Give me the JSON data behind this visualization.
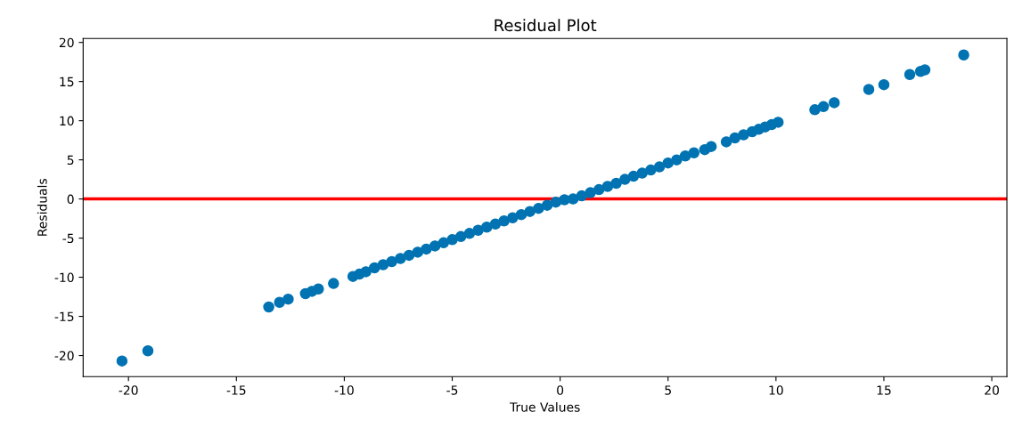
{
  "chart_data": {
    "type": "scatter",
    "title": "Residual Plot",
    "xlabel": "True Values",
    "ylabel": "Residuals",
    "x": [
      -20.3,
      -19.1,
      -13.5,
      -13.0,
      -12.6,
      -11.8,
      -11.5,
      -11.2,
      -10.5,
      -9.6,
      -9.3,
      -9.0,
      -8.6,
      -8.2,
      -7.8,
      -7.4,
      -7.0,
      -6.6,
      -6.2,
      -5.8,
      -5.4,
      -5.0,
      -4.6,
      -4.2,
      -3.8,
      -3.4,
      -3.0,
      -2.6,
      -2.2,
      -1.8,
      -1.4,
      -1.0,
      -0.6,
      -0.2,
      0.2,
      0.6,
      1.0,
      1.4,
      1.8,
      2.2,
      2.6,
      3.0,
      3.4,
      3.8,
      4.2,
      4.6,
      5.0,
      5.4,
      5.8,
      6.2,
      6.7,
      7.0,
      7.7,
      8.1,
      8.5,
      8.9,
      9.2,
      9.5,
      9.8,
      10.1,
      11.8,
      12.2,
      12.7,
      14.3,
      15.0,
      16.2,
      16.7,
      16.9,
      18.7
    ],
    "series": [
      {
        "color": "#0173b2",
        "values": [
          -20.7,
          -19.4,
          -13.8,
          -13.2,
          -12.8,
          -12.1,
          -11.8,
          -11.5,
          -10.8,
          -9.9,
          -9.6,
          -9.3,
          -8.8,
          -8.4,
          -8.0,
          -7.6,
          -7.2,
          -6.8,
          -6.4,
          -6.0,
          -5.6,
          -5.2,
          -4.8,
          -4.4,
          -4.0,
          -3.6,
          -3.2,
          -2.8,
          -2.4,
          -2.0,
          -1.6,
          -1.2,
          -0.8,
          -0.4,
          -0.1,
          0.0,
          0.4,
          0.8,
          1.2,
          1.6,
          2.0,
          2.5,
          2.9,
          3.3,
          3.7,
          4.1,
          4.6,
          5.0,
          5.5,
          5.9,
          6.3,
          6.7,
          7.3,
          7.8,
          8.2,
          8.6,
          8.9,
          9.2,
          9.5,
          9.8,
          11.4,
          11.8,
          12.3,
          14.0,
          14.6,
          15.9,
          16.3,
          16.5,
          18.4
        ]
      }
    ],
    "marker": "circle",
    "xlim": [
      -22.1,
      20.7
    ],
    "ylim": [
      -22.7,
      20.5
    ],
    "xticks": [
      -20,
      -15,
      -10,
      -5,
      0,
      5,
      10,
      15,
      20
    ],
    "yticks": [
      -20,
      -15,
      -10,
      -5,
      0,
      5,
      10,
      15,
      20
    ],
    "ref_lines": [
      {
        "axis": "y",
        "value": 0,
        "color": "#ff0000",
        "line_style": "solid"
      }
    ],
    "grid": false,
    "legend": false
  }
}
